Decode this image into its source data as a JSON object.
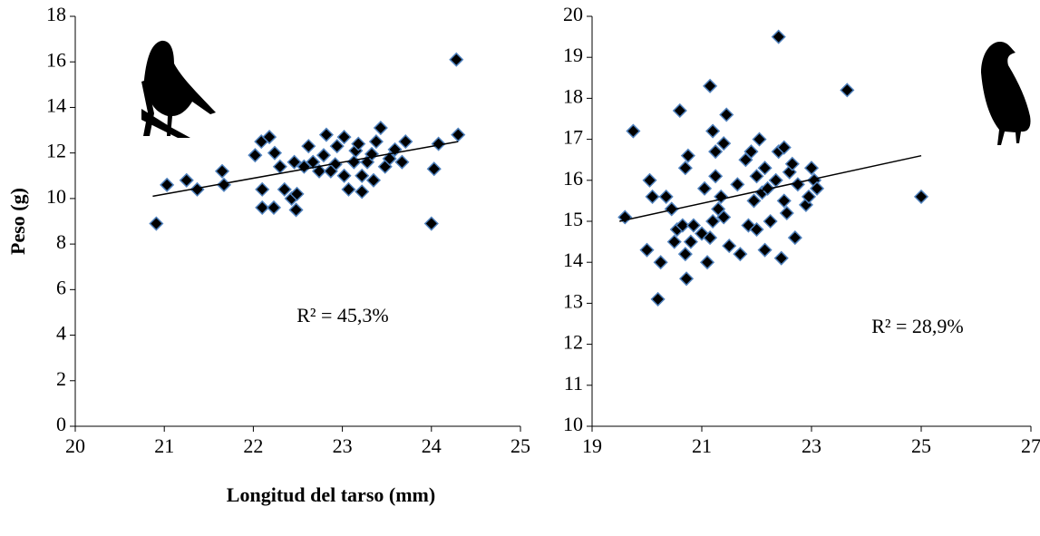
{
  "chart_data": [
    {
      "type": "scatter",
      "y_label": "Peso (g)",
      "x_label": "Longitud del tarso (mm)",
      "annotation": "R² = 45,3%",
      "color": "#000000",
      "edge_color": "#4f81bd",
      "x": [
        20.91,
        21.03,
        21.25,
        21.37,
        21.65,
        21.67,
        22.02,
        22.09,
        22.18,
        22.24,
        22.1,
        22.1,
        22.23,
        22.3,
        22.35,
        22.43,
        22.48,
        22.49,
        22.46,
        22.57,
        22.62,
        22.67,
        22.74,
        22.79,
        22.82,
        22.92,
        22.94,
        23.02,
        23.02,
        23.07,
        23.15,
        23.18,
        23.22,
        23.22,
        23.28,
        23.33,
        23.38,
        23.43,
        23.48,
        23.53,
        23.59,
        23.67,
        23.71,
        24.0,
        24.03,
        24.08,
        24.3,
        24.28,
        23.13,
        22.87,
        23.35
      ],
      "values": [
        8.9,
        10.6,
        10.8,
        10.4,
        11.2,
        10.6,
        11.9,
        12.5,
        12.7,
        12.0,
        10.4,
        9.6,
        9.6,
        11.4,
        10.4,
        10.0,
        9.5,
        10.2,
        11.6,
        11.4,
        12.3,
        11.6,
        11.2,
        11.9,
        12.8,
        11.5,
        12.3,
        12.7,
        11.0,
        10.4,
        12.1,
        12.4,
        10.3,
        11.0,
        11.6,
        11.95,
        12.5,
        13.1,
        11.4,
        11.75,
        12.15,
        11.6,
        12.5,
        8.9,
        11.3,
        12.4,
        12.8,
        16.1,
        11.6,
        11.2,
        10.8
      ],
      "trendline": {
        "x": [
          20.87,
          24.3
        ],
        "y": [
          10.1,
          12.5
        ]
      },
      "xlim": [
        20,
        25
      ],
      "xticks": [
        20,
        21,
        22,
        23,
        24,
        25
      ],
      "ylim": [
        0,
        18
      ],
      "yticks": [
        0,
        2,
        4,
        6,
        8,
        10,
        12,
        14,
        16,
        18
      ]
    },
    {
      "type": "scatter",
      "annotation": "R² = 28,9%",
      "color": "#000000",
      "edge_color": "#4f81bd",
      "x": [
        19.6,
        19.75,
        20.05,
        20.1,
        20.0,
        20.25,
        20.2,
        20.35,
        20.45,
        20.5,
        20.55,
        20.6,
        20.65,
        20.7,
        20.7,
        20.72,
        20.75,
        20.8,
        20.85,
        21.0,
        21.05,
        21.1,
        21.15,
        21.15,
        21.2,
        21.2,
        21.25,
        21.25,
        21.3,
        21.35,
        21.4,
        21.4,
        21.45,
        21.5,
        21.65,
        21.7,
        21.8,
        21.85,
        21.9,
        21.95,
        22.0,
        22.0,
        22.05,
        22.1,
        22.15,
        22.15,
        22.2,
        22.25,
        22.35,
        22.4,
        22.4,
        22.45,
        22.5,
        22.5,
        22.55,
        22.6,
        22.65,
        22.7,
        22.75,
        22.9,
        22.95,
        23.0,
        23.05,
        23.1,
        23.65,
        25.0
      ],
      "values": [
        15.1,
        17.2,
        16.0,
        15.6,
        14.3,
        14.0,
        13.1,
        15.6,
        15.3,
        14.5,
        14.8,
        17.7,
        14.9,
        16.3,
        14.2,
        13.6,
        16.6,
        14.5,
        14.9,
        14.7,
        15.8,
        14.0,
        18.3,
        14.6,
        17.2,
        15.0,
        16.7,
        16.1,
        15.3,
        15.6,
        16.9,
        15.1,
        17.6,
        14.4,
        15.9,
        14.2,
        16.5,
        14.9,
        16.7,
        15.5,
        16.1,
        14.8,
        17.0,
        15.7,
        16.3,
        14.3,
        15.8,
        15.0,
        16.0,
        19.5,
        16.7,
        14.1,
        16.8,
        15.5,
        15.2,
        16.2,
        16.4,
        14.6,
        15.9,
        15.4,
        15.6,
        16.3,
        16.0,
        15.8,
        18.2,
        15.6
      ],
      "trendline": {
        "x": [
          19.5,
          25.0
        ],
        "y": [
          15.0,
          16.6
        ]
      },
      "xlim": [
        19,
        27
      ],
      "xticks": [
        19,
        21,
        23,
        25,
        27
      ],
      "ylim": [
        10,
        20
      ],
      "yticks": [
        10,
        11,
        12,
        13,
        14,
        15,
        16,
        17,
        18,
        19,
        20
      ]
    }
  ]
}
